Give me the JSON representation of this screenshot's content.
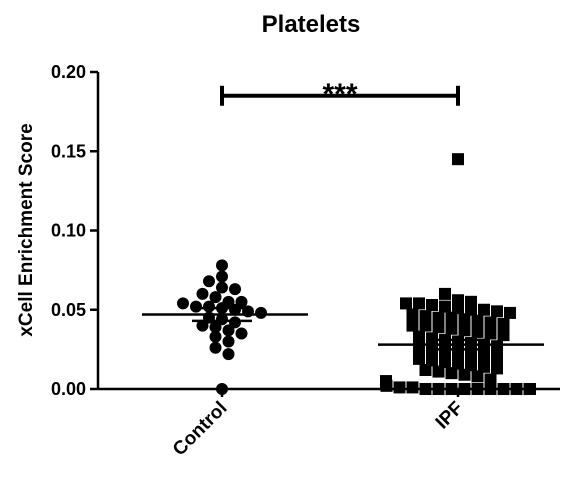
{
  "chart_data": {
    "type": "scatter",
    "title": "Platelets",
    "xlabel": "",
    "ylabel": "xCell Enrichment Score",
    "ylim": [
      0,
      0.2
    ],
    "yticks": [
      "0.00",
      "0.05",
      "0.10",
      "0.15",
      "0.20"
    ],
    "ytick_values": [
      0,
      0.05,
      0.1,
      0.15,
      0.2
    ],
    "categories": [
      "Control",
      "IPF"
    ],
    "grid": false,
    "significance": {
      "label": "***",
      "between": [
        "Control",
        "IPF"
      ],
      "y": 0.185
    },
    "series": [
      {
        "category": "Control",
        "marker": "circle",
        "mean": 0.047,
        "sem": [
          0.043,
          0.051
        ],
        "values": [
          0.078,
          0.071,
          0.068,
          0.064,
          0.063,
          0.06,
          0.058,
          0.055,
          0.055,
          0.054,
          0.052,
          0.052,
          0.051,
          0.05,
          0.049,
          0.048,
          0.045,
          0.044,
          0.042,
          0.04,
          0.039,
          0.037,
          0.035,
          0.033,
          0.03,
          0.026,
          0.022,
          0.0
        ]
      },
      {
        "category": "IPF",
        "marker": "square",
        "mean": 0.028,
        "sem": [
          0.025,
          0.031
        ],
        "values": [
          0.145,
          0.06,
          0.056,
          0.055,
          0.054,
          0.054,
          0.053,
          0.052,
          0.051,
          0.05,
          0.05,
          0.049,
          0.048,
          0.047,
          0.046,
          0.045,
          0.045,
          0.044,
          0.043,
          0.042,
          0.041,
          0.04,
          0.04,
          0.039,
          0.038,
          0.037,
          0.036,
          0.035,
          0.034,
          0.033,
          0.032,
          0.031,
          0.03,
          0.029,
          0.028,
          0.027,
          0.026,
          0.025,
          0.024,
          0.023,
          0.022,
          0.021,
          0.02,
          0.019,
          0.018,
          0.017,
          0.016,
          0.015,
          0.014,
          0.013,
          0.012,
          0.011,
          0.01,
          0.009,
          0.008,
          0.006,
          0.005,
          0.004,
          0.003,
          0.002,
          0.001,
          0.001,
          0.0,
          0.0,
          0.0,
          0.0,
          0.0,
          0.0,
          0.0,
          0.0,
          0.0,
          0.0,
          0.0,
          0.0
        ]
      }
    ]
  },
  "colors": {
    "marker": "#000000",
    "axis": "#000000",
    "background": "#ffffff"
  }
}
